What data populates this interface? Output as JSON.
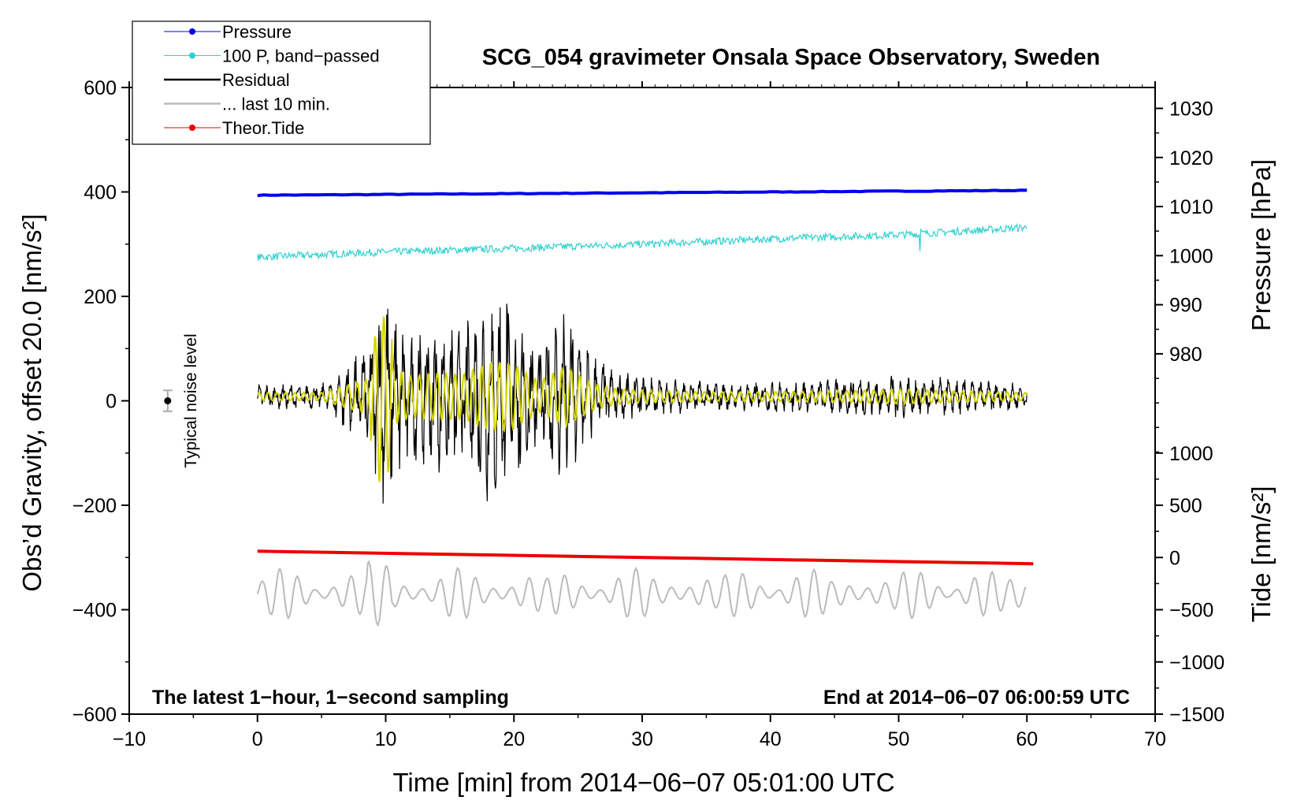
{
  "chart_data": {
    "type": "line",
    "title": "SCG_054 gravimeter Onsala Space Observatory, Sweden",
    "xlabel": "Time [min] from 2014−06−07 05:01:00 UTC",
    "ylabel_left": "Obs’d Gravity, offset 20.0 [nm/s²]",
    "ylabel_right_top": "Pressure [hPa]",
    "ylabel_right_bottom": "Tide [nm/s²]",
    "xlim": [
      -10,
      70
    ],
    "ylim_left": [
      -600,
      600
    ],
    "x_ticks": [
      -10,
      0,
      10,
      20,
      30,
      40,
      50,
      60,
      70
    ],
    "x_tick_labels": [
      "−10",
      "0",
      "10",
      "20",
      "30",
      "40",
      "50",
      "60",
      "70"
    ],
    "y_ticks_left": [
      600,
      400,
      200,
      0,
      -200,
      -400,
      -600
    ],
    "y_tick_labels_left": [
      "600",
      "400",
      "200",
      "0",
      "−200",
      "−400",
      "−600"
    ],
    "pressure_axis": {
      "ticks": [
        1030,
        1020,
        1010,
        1000,
        990,
        980
      ],
      "tick_labels": [
        "1030",
        "1020",
        "1010",
        "1000",
        "990",
        "980"
      ],
      "map_to_left": {
        "value": [
          980,
          1030
        ],
        "left": [
          90,
          560
        ]
      }
    },
    "tide_axis": {
      "ticks": [
        1000,
        500,
        0,
        -500,
        -1000,
        -1500
      ],
      "tick_labels": [
        "1000",
        "500",
        "0",
        "−500",
        "−1000",
        "−1500"
      ],
      "map_to_left": {
        "value": [
          -1500,
          1000
        ],
        "left": [
          -600,
          -100
        ]
      }
    },
    "legend": {
      "position": "top-left",
      "entries": [
        {
          "label": "Pressure",
          "color": "#0000ee",
          "marker": "dot"
        },
        {
          "label": "100 P, band−passed",
          "color": "#30d0d0",
          "marker": "dot"
        },
        {
          "label": "Residual",
          "color": "#000000",
          "marker": "none"
        },
        {
          "label": "... last 10 min.",
          "color": "#bbbbbb",
          "marker": "none"
        },
        {
          "label": "Theor.Tide",
          "color": "#ee0000",
          "marker": "dot"
        }
      ]
    },
    "annotations": {
      "noise_label": "Typical noise level",
      "noise_level": {
        "x": -7,
        "center": 0,
        "halfwidth": 20
      },
      "bottom_left": "The latest 1−hour, 1−second sampling",
      "bottom_right": "End at 2014−06−07 06:00:59 UTC"
    },
    "series": [
      {
        "name": "Pressure",
        "color": "#0000ee",
        "axis": "pressure",
        "x": [
          0,
          60
        ],
        "values": [
          1012.3,
          1013.3
        ]
      },
      {
        "name": "100 P, band−passed",
        "color": "#30d0d0",
        "axis": "left",
        "x": [
          0,
          10,
          20,
          30,
          40,
          50,
          60
        ],
        "values": [
          275,
          285,
          292,
          300,
          310,
          318,
          332
        ]
      },
      {
        "name": "Residual",
        "color": "#000000",
        "axis": "left",
        "x": [
          0,
          5,
          9,
          9.5,
          10,
          12,
          14,
          16,
          18,
          19,
          20,
          22,
          24,
          26,
          28,
          30,
          35,
          40,
          45,
          50,
          55,
          60
        ],
        "amplitude": [
          25,
          25,
          120,
          220,
          200,
          130,
          150,
          140,
          210,
          220,
          200,
          100,
          190,
          90,
          50,
          40,
          30,
          30,
          35,
          45,
          35,
          25
        ]
      },
      {
        "name": "Theor.Tide",
        "color": "#ee0000",
        "axis": "tide",
        "x": [
          0,
          60.5
        ],
        "values": [
          60,
          -60
        ]
      },
      {
        "name": "... last 10 min.",
        "color": "#bbbbbb",
        "axis": "left",
        "x": [
          0,
          60
        ],
        "center": -370,
        "amplitude": [
          20,
          60
        ]
      }
    ]
  }
}
